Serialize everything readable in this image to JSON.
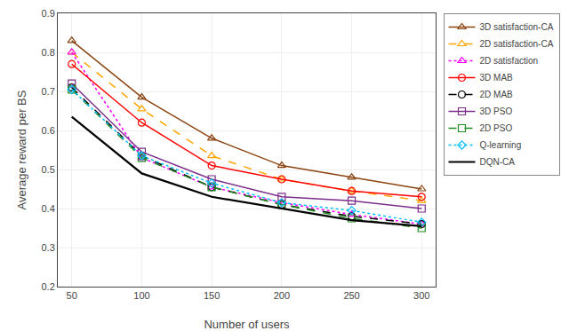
{
  "chart_data": {
    "type": "line",
    "x": [
      50,
      100,
      150,
      200,
      250,
      300
    ],
    "series": [
      {
        "name": "3D satisfaction-CA",
        "color": "#8B4513",
        "line_style": "solid",
        "marker": "triangle",
        "values": [
          0.83,
          0.685,
          0.58,
          0.51,
          0.48,
          0.45
        ]
      },
      {
        "name": "2D satisfaction-CA",
        "color": "#FFA500",
        "line_style": "dashed",
        "marker": "triangle",
        "values": [
          0.8,
          0.655,
          0.535,
          0.475,
          0.445,
          0.42
        ]
      },
      {
        "name": "2D satisfaction",
        "color": "#FF00FF",
        "line_style": "dotted",
        "marker": "triangle",
        "values": [
          0.8,
          0.53,
          0.455,
          0.415,
          0.385,
          0.36
        ]
      },
      {
        "name": "3D MAB",
        "color": "#FF0000",
        "line_style": "solid",
        "marker": "circle",
        "values": [
          0.77,
          0.62,
          0.51,
          0.475,
          0.445,
          0.43
        ]
      },
      {
        "name": "2D MAB",
        "color": "#000000",
        "line_style": "dashed",
        "marker": "circle",
        "values": [
          0.71,
          0.535,
          0.455,
          0.41,
          0.38,
          0.36
        ]
      },
      {
        "name": "3D PSO",
        "color": "#7B2D8B",
        "line_style": "solid",
        "marker": "square",
        "values": [
          0.72,
          0.545,
          0.475,
          0.43,
          0.42,
          0.4
        ]
      },
      {
        "name": "2D PSO",
        "color": "#228B22",
        "line_style": "dashed",
        "marker": "square",
        "values": [
          0.705,
          0.53,
          0.455,
          0.41,
          0.375,
          0.35
        ]
      },
      {
        "name": "Q-learning",
        "color": "#00BFFF",
        "line_style": "dotted",
        "marker": "diamond",
        "values": [
          0.705,
          0.535,
          0.465,
          0.415,
          0.395,
          0.365
        ]
      },
      {
        "name": "DQN-CA",
        "color": "#000000",
        "line_style": "solid",
        "values": [
          0.635,
          0.49,
          0.43,
          0.4,
          0.37,
          0.355
        ]
      }
    ],
    "xlabel": "Number of users",
    "ylabel": "Average reward per BS",
    "xlim": [
      40,
      310
    ],
    "ylim": [
      0.2,
      0.9
    ],
    "xticks": [
      50,
      100,
      150,
      200,
      250,
      300
    ],
    "yticks": [
      0.2,
      0.3,
      0.4,
      0.5,
      0.6,
      0.7,
      0.8,
      0.9
    ],
    "grid": true,
    "legend": "right"
  }
}
